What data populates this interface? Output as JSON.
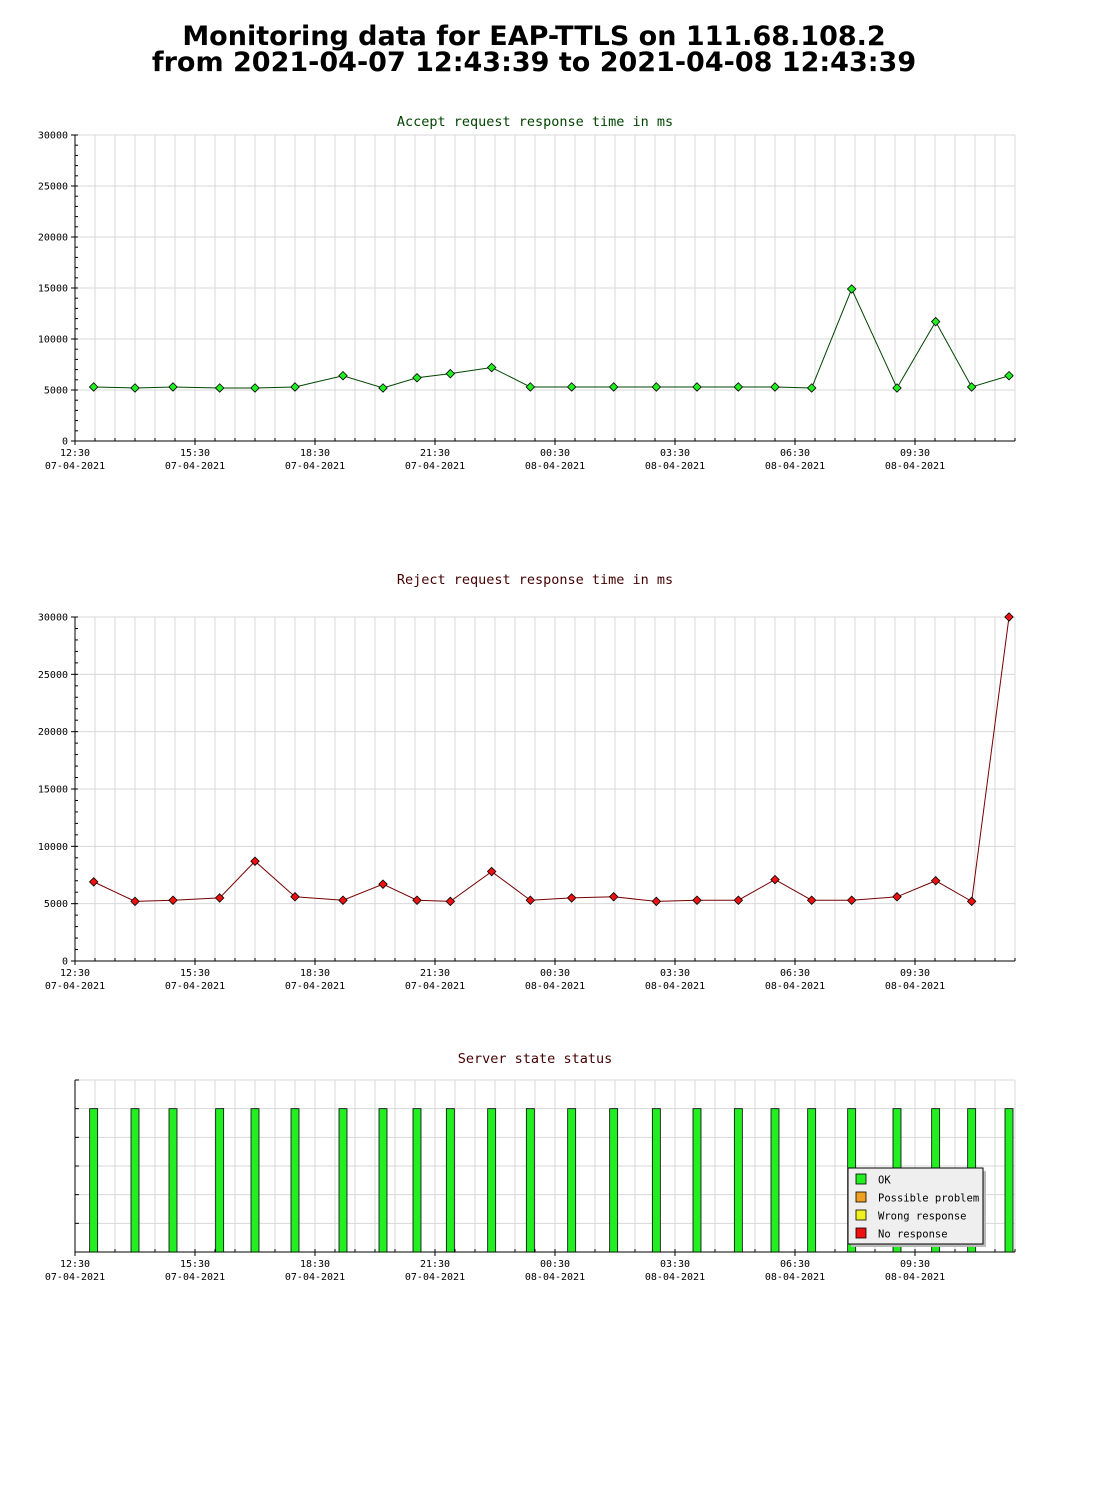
{
  "page_title": {
    "line1": "Monitoring data for EAP-TTLS on 111.68.108.2",
    "line2": "from 2021-04-07 12:43:39 to 2021-04-08 12:43:39"
  },
  "colors": {
    "accept_line": "#004400",
    "accept_marker": "#22ee22",
    "reject_line": "#770000",
    "reject_marker": "#ee1111",
    "ok": "#22ee22",
    "possible_problem": "#f0a020",
    "wrong_response": "#f0f020",
    "no_response": "#ee1111",
    "grid": "#d8d8d8"
  },
  "time_axis": {
    "major_ticks": [
      {
        "t": 0,
        "time": "12:30",
        "date": "07-04-2021"
      },
      {
        "t": 180,
        "time": "15:30",
        "date": "07-04-2021"
      },
      {
        "t": 360,
        "time": "18:30",
        "date": "07-04-2021"
      },
      {
        "t": 540,
        "time": "21:30",
        "date": "07-04-2021"
      },
      {
        "t": 720,
        "time": "00:30",
        "date": "08-04-2021"
      },
      {
        "t": 900,
        "time": "03:30",
        "date": "08-04-2021"
      },
      {
        "t": 1080,
        "time": "06:30",
        "date": "08-04-2021"
      },
      {
        "t": 1260,
        "time": "09:30",
        "date": "08-04-2021"
      }
    ],
    "range_minutes": [
      0,
      1410
    ],
    "minor_step_minutes": 30
  },
  "chart_data": [
    {
      "id": "accept",
      "type": "line",
      "title": "Accept request response time in ms",
      "ylim": [
        0,
        30000
      ],
      "yticks": [
        0,
        5000,
        10000,
        15000,
        20000,
        25000,
        30000
      ],
      "grid": true,
      "series": [
        {
          "x": [
            28,
            90,
            147,
            217,
            270,
            330,
            402,
            462,
            513,
            563,
            625,
            683,
            745,
            808,
            872,
            933,
            995,
            1050,
            1105,
            1165,
            1233,
            1291,
            1345,
            1401
          ],
          "y": [
            5300,
            5200,
            5300,
            5200,
            5200,
            5300,
            6400,
            5200,
            6200,
            6600,
            7200,
            5300,
            5300,
            5300,
            5300,
            5300,
            5300,
            5300,
            5200,
            14900,
            5200,
            11700,
            5300,
            6400
          ]
        }
      ]
    },
    {
      "id": "reject",
      "type": "line",
      "title": "Reject request response time in ms",
      "ylim": [
        0,
        30000
      ],
      "yticks": [
        0,
        5000,
        10000,
        15000,
        20000,
        25000,
        30000
      ],
      "grid": true,
      "series": [
        {
          "x": [
            28,
            90,
            147,
            217,
            270,
            330,
            402,
            462,
            513,
            563,
            625,
            683,
            745,
            808,
            872,
            933,
            995,
            1050,
            1105,
            1165,
            1233,
            1291,
            1345,
            1401
          ],
          "y": [
            6900,
            5200,
            5300,
            5500,
            8700,
            5600,
            5300,
            6700,
            5300,
            5200,
            7800,
            5300,
            5500,
            5600,
            5200,
            5300,
            5300,
            7100,
            5300,
            5300,
            5600,
            7000,
            5200,
            30000
          ]
        }
      ]
    },
    {
      "id": "state",
      "type": "bar",
      "title": "Server state status",
      "ylim": [
        0,
        1.2
      ],
      "grid": true,
      "legend_placement": "bottom-right",
      "legend": [
        "OK",
        "Possible problem",
        "Wrong response",
        "No response"
      ],
      "series": [
        {
          "status": "OK",
          "x": [
            28,
            90,
            147,
            217,
            270,
            330,
            402,
            462,
            513,
            563,
            625,
            683,
            745,
            808,
            872,
            933,
            995,
            1050,
            1105,
            1165,
            1233,
            1291,
            1345,
            1401
          ],
          "values": [
            1,
            1,
            1,
            1,
            1,
            1,
            1,
            1,
            1,
            1,
            1,
            1,
            1,
            1,
            1,
            1,
            1,
            1,
            1,
            1,
            1,
            1,
            1,
            1
          ]
        }
      ]
    }
  ]
}
